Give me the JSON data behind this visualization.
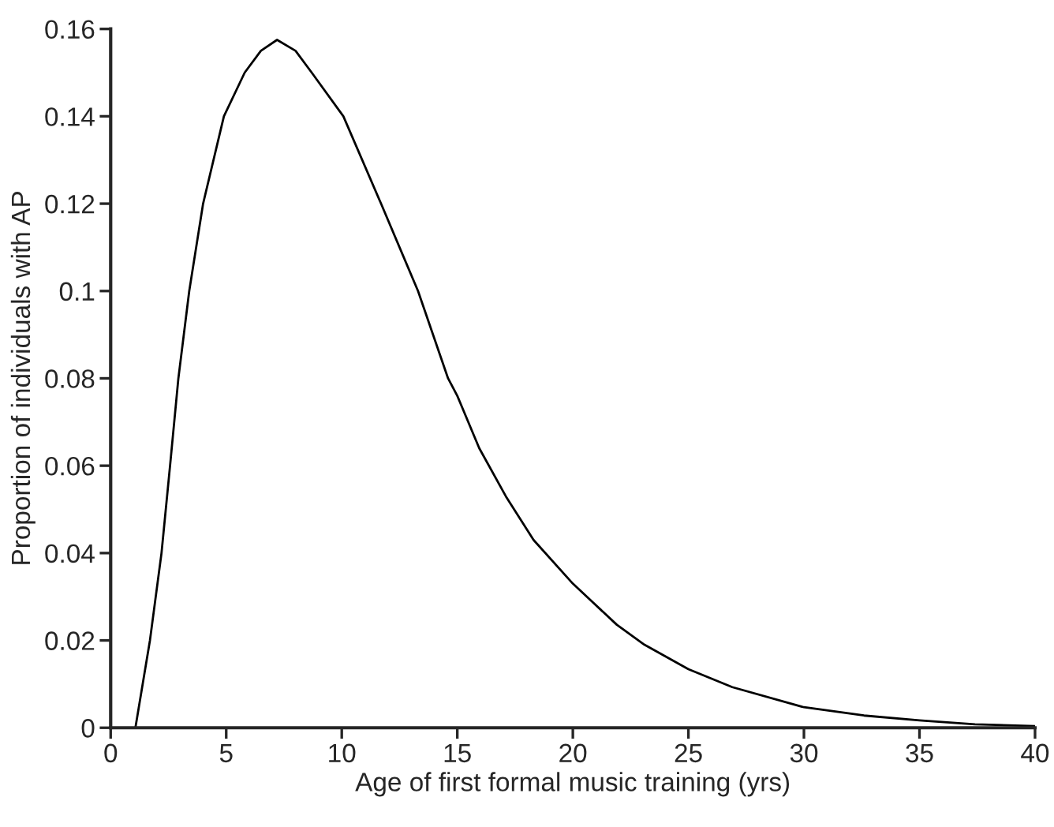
{
  "chart_data": {
    "type": "line",
    "xlabel": "Age of first formal music training (yrs)",
    "ylabel": "Proportion of individuals with AP",
    "xlim": [
      0,
      40
    ],
    "xticks": [
      0,
      5,
      10,
      15,
      20,
      25,
      30,
      35,
      40
    ],
    "ylim": [
      0,
      0.16
    ],
    "yticks": [
      0,
      0.02,
      0.04,
      0.06,
      0.08,
      {
        "value": 0.1,
        "label": "0.1"
      },
      0.12,
      0.14,
      0.16
    ],
    "grid": false,
    "legend": false,
    "marker": "none",
    "line_style": "solid",
    "series": [
      {
        "color": "#000000",
        "x": [
          1.07,
          1.7,
          2.2,
          2.57,
          2.93,
          3.4,
          4.0,
          4.9,
          5.8,
          6.5,
          7.2,
          8.0,
          8.7,
          10.07,
          11.7,
          13.3,
          14.6,
          15,
          15.95,
          17.1,
          18.3,
          20,
          21.9,
          23.1,
          25,
          26.9,
          30,
          32.6,
          35,
          37.4,
          40
        ],
        "values": [
          0,
          0.02,
          0.04,
          0.06,
          0.08,
          0.1,
          0.12,
          0.14,
          0.15,
          0.155,
          0.1575,
          0.155,
          0.15,
          0.14,
          0.12,
          0.1,
          0.08,
          0.076,
          0.064,
          0.053,
          0.043,
          0.033,
          0.0236,
          0.019,
          0.0134,
          0.0093,
          0.0047,
          0.0028,
          0.0017,
          0.0008,
          0.0004
        ]
      }
    ]
  }
}
